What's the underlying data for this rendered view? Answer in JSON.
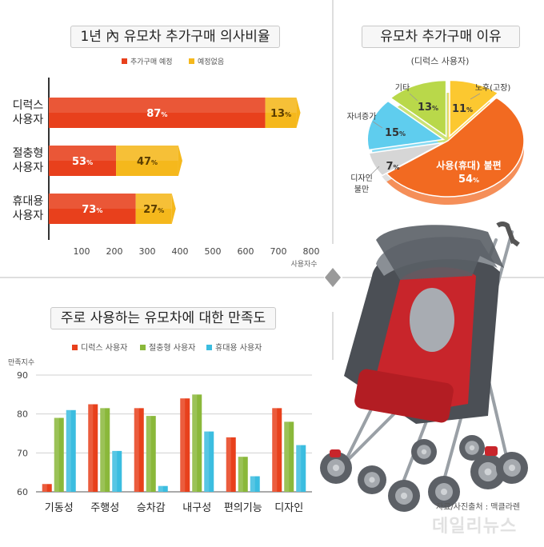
{
  "chart_data": [
    {
      "type": "bar",
      "orientation": "horizontal",
      "stacked": true,
      "title": "1년 內 유모차 추가구매 의사비율",
      "categories": [
        [
          "디럭스",
          "사용자"
        ],
        [
          "절충형",
          "사용자"
        ],
        [
          "휴대용",
          "사용자"
        ]
      ],
      "series": [
        {
          "name": "추가구매 예정",
          "values": [
            87,
            53,
            73
          ],
          "color": "#e8401c"
        },
        {
          "name": "예정없음",
          "values": [
            13,
            47,
            27
          ],
          "color": "#f5b81c"
        }
      ],
      "bar_lengths": [
        [
          660,
          95
        ],
        [
          205,
          190
        ],
        [
          265,
          110
        ]
      ],
      "label_suffix": "%",
      "xlabel": "사용자수",
      "xticks": [
        100,
        200,
        300,
        400,
        500,
        600,
        700,
        800
      ],
      "xlim": [
        0,
        800
      ],
      "legend": "top"
    },
    {
      "type": "pie",
      "title": "유모차 추가구매 이유",
      "subtitle": "(디럭스 사용자)",
      "slices": [
        {
          "label": "노후(고장)",
          "value": 11,
          "color": "#fcc830"
        },
        {
          "label": "사용(휴대) 불편",
          "value": 54,
          "color": "#f26a21"
        },
        {
          "label": "디자인 불만",
          "value": 7,
          "color": "#d6d6d6"
        },
        {
          "label": "자녀증가",
          "value": 15,
          "color": "#5fcdee"
        },
        {
          "label": "기타",
          "value": 13,
          "color": "#b9d84a"
        }
      ],
      "label_suffix": "%"
    },
    {
      "type": "bar",
      "title": "주로 사용하는 유모차에 대한 만족도",
      "categories": [
        "기동성",
        "주행성",
        "승차감",
        "내구성",
        "편의기능",
        "디자인"
      ],
      "series": [
        {
          "name": "디럭스 사용자",
          "values": [
            62,
            82.5,
            81.5,
            84,
            74,
            81.5
          ],
          "color": "#e8401c"
        },
        {
          "name": "절충형 사용자",
          "values": [
            79,
            81.5,
            79.5,
            85,
            69,
            78
          ],
          "color": "#8ab83a"
        },
        {
          "name": "휴대용 사용자",
          "values": [
            81,
            70.5,
            61.5,
            75.5,
            64,
            72
          ],
          "color": "#3bbde0"
        }
      ],
      "ylabel": "만족지수",
      "ylim": [
        60,
        90
      ],
      "yticks": [
        60,
        70,
        80,
        90
      ],
      "grid": true,
      "legend": "top"
    }
  ],
  "source": "자료/사진출처 : 맥클라렌",
  "watermark": "데일리뉴스"
}
